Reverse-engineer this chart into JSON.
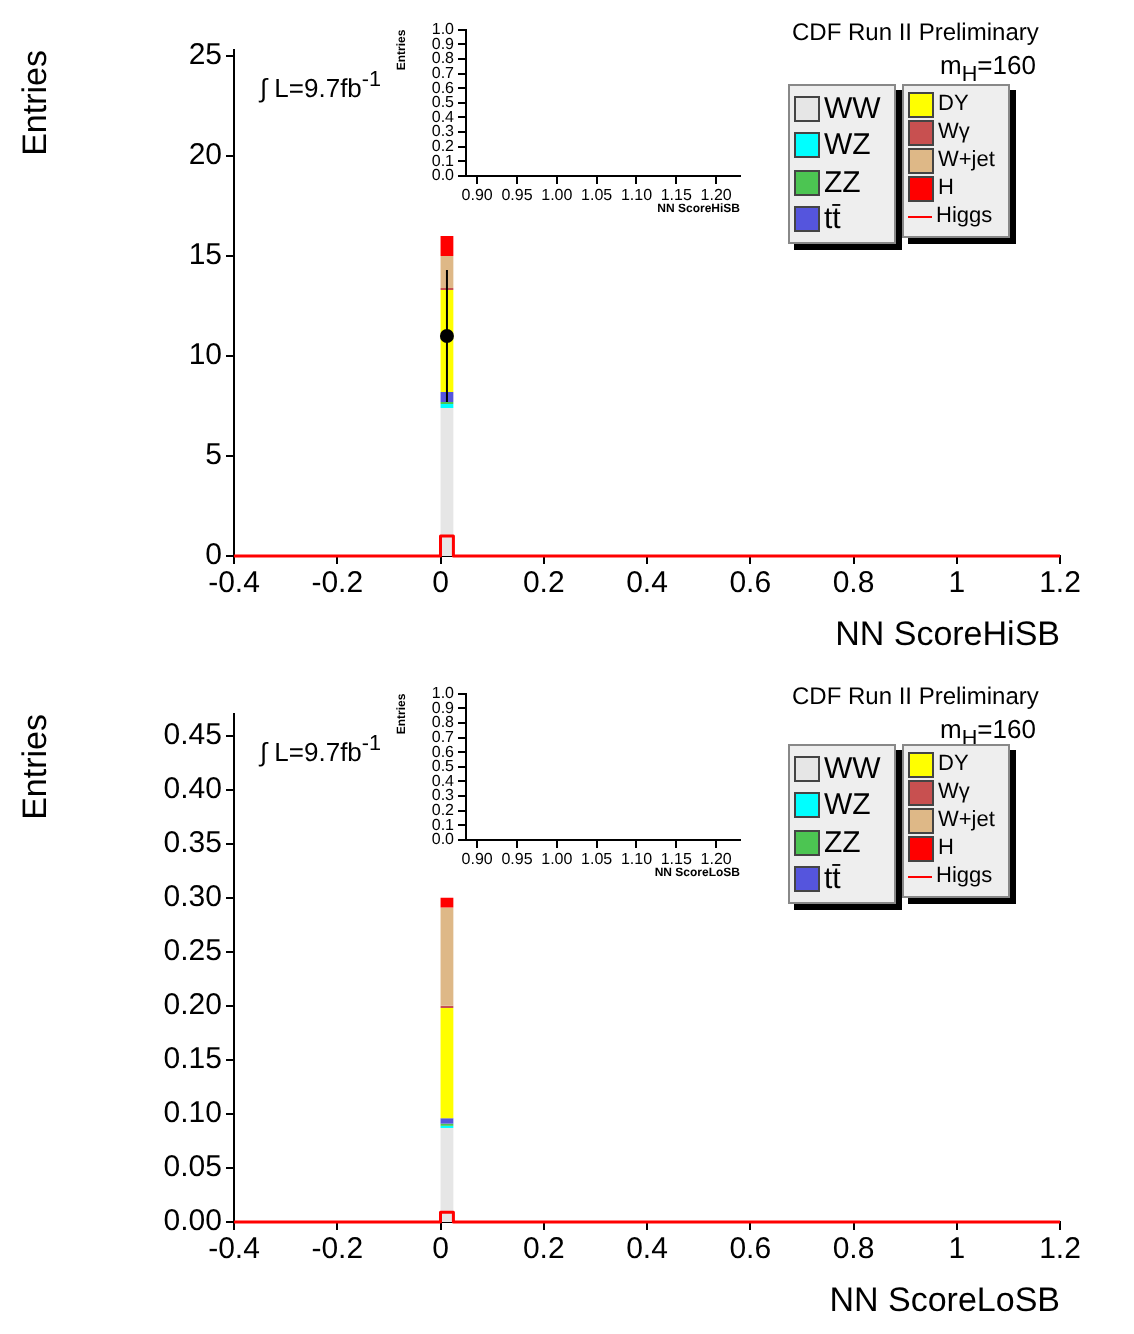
{
  "chart_data": [
    {
      "type": "bar",
      "title": "CDF Run II Preliminary",
      "xlabel": "NN ScoreHiSB",
      "ylabel": "Entries",
      "annotations": [
        "∫ L=9.7fb$^{-1}$",
        "m$_{H}$=160"
      ],
      "x": [
        0.0125
      ],
      "stacked": true,
      "legend": "top right",
      "series": [
        {
          "name": "WW",
          "color": "#e6e6e6",
          "values": [
            7.4
          ]
        },
        {
          "name": "WZ",
          "color": "#00ffff",
          "values": [
            0.2
          ]
        },
        {
          "name": "ZZ",
          "color": "#4cc552",
          "values": [
            0.1
          ]
        },
        {
          "name": "tt̄",
          "color": "#5555dd",
          "values": [
            0.5
          ]
        },
        {
          "name": "DY",
          "color": "#ffff00",
          "values": [
            5.1
          ]
        },
        {
          "name": "Wγ",
          "color": "#c85050",
          "values": [
            0.1
          ]
        },
        {
          "name": "W+jet",
          "color": "#deb887",
          "values": [
            1.6
          ]
        },
        {
          "name": "H",
          "color": "#ff0000",
          "values": [
            1.0
          ]
        },
        {
          "name": "Higgs",
          "type": "step",
          "color": "#ff0000",
          "x": [
            -0.4,
            0,
            0.025,
            1.2
          ],
          "values": [
            0,
            1.0,
            0,
            0
          ]
        },
        {
          "type": "scatter",
          "color": "#000000",
          "marker": "circle",
          "x": [
            0.0125
          ],
          "values": [
            11
          ],
          "errors": [
            3.3
          ]
        }
      ],
      "xlim": [
        -0.4,
        1.2
      ],
      "xticks": [
        -0.4,
        -0.2,
        0,
        0.2,
        0.4,
        0.6,
        0.8,
        1,
        1.2
      ],
      "ylim": [
        0,
        25.3
      ],
      "yticks": [
        0,
        5,
        10,
        15,
        20,
        25
      ]
    },
    {
      "type": "bar",
      "xlabel": "NN ScoreHiSB",
      "ylabel": "Entries",
      "xlim": [
        0.886,
        1.23
      ],
      "xticks": [
        {
          "value": 0.9,
          "label": "0.90"
        },
        0.95,
        {
          "value": 1,
          "label": "1.00"
        },
        1.05,
        {
          "value": 1.1,
          "label": "1.10"
        },
        1.15,
        {
          "value": 1.2,
          "label": "1.20"
        }
      ],
      "ylim": [
        0,
        1
      ],
      "yticks": [
        {
          "value": 0,
          "label": "0.0"
        },
        0.1,
        0.2,
        0.3,
        0.4,
        0.5,
        0.6,
        0.7,
        0.8,
        0.9,
        {
          "value": 1,
          "label": "1.0"
        }
      ]
    },
    {
      "type": "bar",
      "title": "CDF Run II Preliminary",
      "xlabel": "NN ScoreLoSB",
      "ylabel": "Entries",
      "annotations": [
        "∫ L=9.7fb$^{-1}$",
        "m$_{H}$=160"
      ],
      "x": [
        0.0125
      ],
      "stacked": true,
      "legend": "top right",
      "series": [
        {
          "name": "WW",
          "color": "#e6e6e6",
          "values": [
            0.087
          ]
        },
        {
          "name": "WZ",
          "color": "#00ffff",
          "values": [
            0.002
          ]
        },
        {
          "name": "ZZ",
          "color": "#4cc552",
          "values": [
            0.002
          ]
        },
        {
          "name": "tt̄",
          "color": "#5555dd",
          "values": [
            0.005
          ]
        },
        {
          "name": "DY",
          "color": "#ffff00",
          "values": [
            0.102
          ]
        },
        {
          "name": "Wγ",
          "color": "#c85050",
          "values": [
            0.002
          ]
        },
        {
          "name": "W+jet",
          "color": "#deb887",
          "values": [
            0.091
          ]
        },
        {
          "name": "H",
          "color": "#ff0000",
          "values": [
            0.009
          ]
        },
        {
          "name": "Higgs",
          "type": "step",
          "color": "#ff0000",
          "x": [
            -0.4,
            0,
            0.025,
            1.2
          ],
          "values": [
            0,
            0.009,
            0,
            0
          ]
        }
      ],
      "xlim": [
        -0.4,
        1.2
      ],
      "xticks": [
        -0.4,
        -0.2,
        0,
        0.2,
        0.4,
        0.6,
        0.8,
        1,
        1.2
      ],
      "ylim": [
        0,
        0.47
      ],
      "yticks": [
        {
          "value": 0,
          "label": "0.00"
        },
        {
          "value": 0.05,
          "label": "0.05"
        },
        {
          "value": 0.1,
          "label": "0.10"
        },
        {
          "value": 0.15,
          "label": "0.15"
        },
        {
          "value": 0.2,
          "label": "0.20"
        },
        {
          "value": 0.25,
          "label": "0.25"
        },
        {
          "value": 0.3,
          "label": "0.30"
        },
        {
          "value": 0.35,
          "label": "0.35"
        },
        {
          "value": 0.4,
          "label": "0.40"
        },
        {
          "value": 0.45,
          "label": "0.45"
        }
      ]
    },
    {
      "type": "bar",
      "xlabel": "NN ScoreLoSB",
      "ylabel": "Entries",
      "xlim": [
        0.886,
        1.23
      ],
      "xticks": [
        {
          "value": 0.9,
          "label": "0.90"
        },
        0.95,
        {
          "value": 1,
          "label": "1.00"
        },
        1.05,
        {
          "value": 1.1,
          "label": "1.10"
        },
        1.15,
        {
          "value": 1.2,
          "label": "1.20"
        }
      ],
      "ylim": [
        0,
        1
      ],
      "yticks": [
        {
          "value": 0,
          "label": "0.0"
        },
        0.1,
        0.2,
        0.3,
        0.4,
        0.5,
        0.6,
        0.7,
        0.8,
        0.9,
        {
          "value": 1,
          "label": "1.0"
        }
      ]
    }
  ]
}
